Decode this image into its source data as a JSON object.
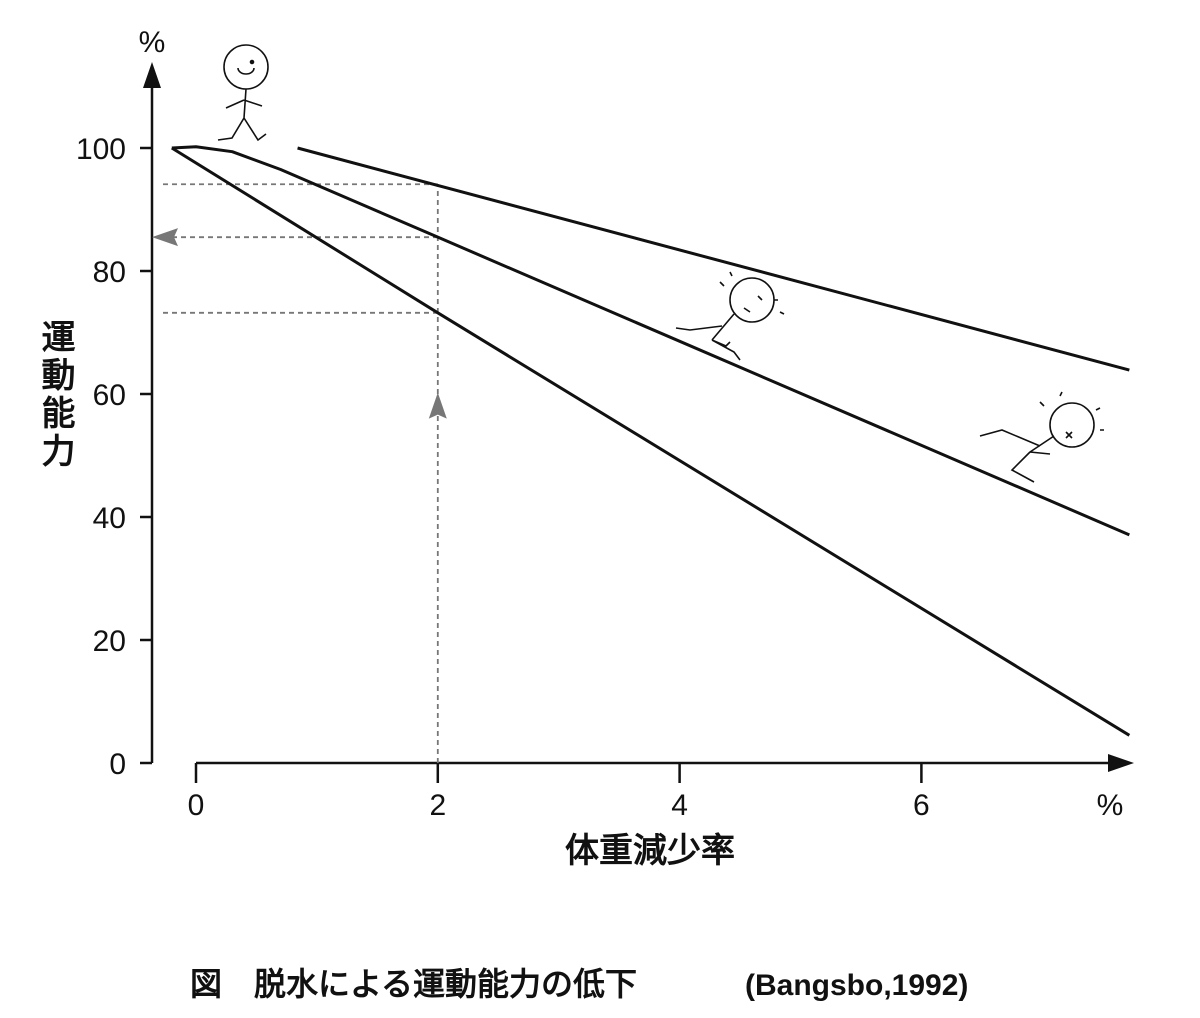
{
  "chart_data": {
    "type": "line",
    "title": "",
    "caption": "図　脱水による運動能力の低下",
    "caption_source": "(Bangsbo,1992)",
    "xlabel": "体重減少率",
    "ylabel": "運動能力",
    "x_unit": "%",
    "y_unit": "%",
    "xlim": [
      0,
      7.8
    ],
    "ylim": [
      0,
      100
    ],
    "x_ticks": [
      "0",
      "2",
      "4",
      "6"
    ],
    "y_ticks": [
      "0",
      "20",
      "40",
      "60",
      "80",
      "100"
    ],
    "grid": false,
    "legend": "none",
    "line_color": "#111111",
    "guide_color": "#777777",
    "series": [
      {
        "points": [
          [
            0.84,
            100
          ],
          [
            7.72,
            63.9
          ]
        ]
      },
      {
        "points": [
          [
            -0.2,
            100
          ],
          [
            0,
            100.2
          ],
          [
            0.3,
            99.4
          ],
          [
            0.7,
            96.5
          ],
          [
            2,
            85.5
          ],
          [
            7.72,
            37.1
          ]
        ]
      },
      {
        "points": [
          [
            -0.2,
            100
          ],
          [
            2,
            73.2
          ],
          [
            7.72,
            4.5
          ]
        ]
      }
    ],
    "guides": {
      "x": 2,
      "y_values": [
        94.1,
        85.5,
        73.2
      ]
    }
  }
}
